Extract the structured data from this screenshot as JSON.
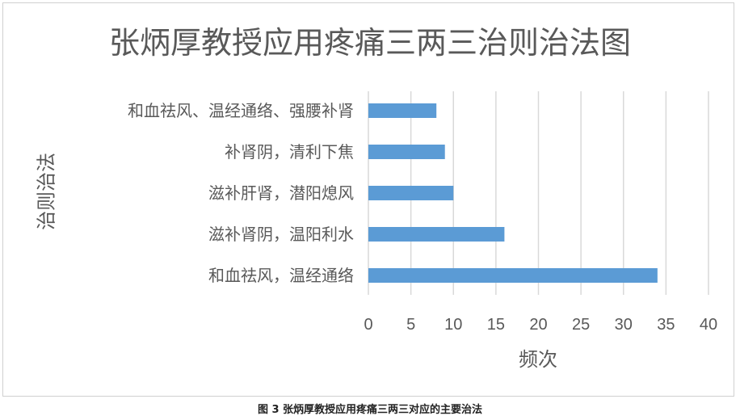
{
  "chart_data": {
    "type": "bar",
    "orientation": "horizontal",
    "title": "张炳厚教授应用疼痛三两三治则治法图",
    "xlabel": "频次",
    "ylabel": "治则治法",
    "categories": [
      "和血祛风、温经通络、强腰补肾",
      "补肾阴，清利下焦",
      "滋补肝肾，潜阳熄风",
      "滋补肾阴，温阳利水",
      "和血祛风，温经通络"
    ],
    "values": [
      8,
      9,
      10,
      16,
      34
    ],
    "xlim": [
      0,
      40
    ],
    "xticks": [
      "0",
      "5",
      "10",
      "15",
      "20",
      "25",
      "30",
      "35",
      "40"
    ],
    "grid": "vertical",
    "legend": "none",
    "bar_color": "#5b9bd5"
  },
  "caption": "图 3 张炳厚教授应用疼痛三两三对应的主要治法"
}
